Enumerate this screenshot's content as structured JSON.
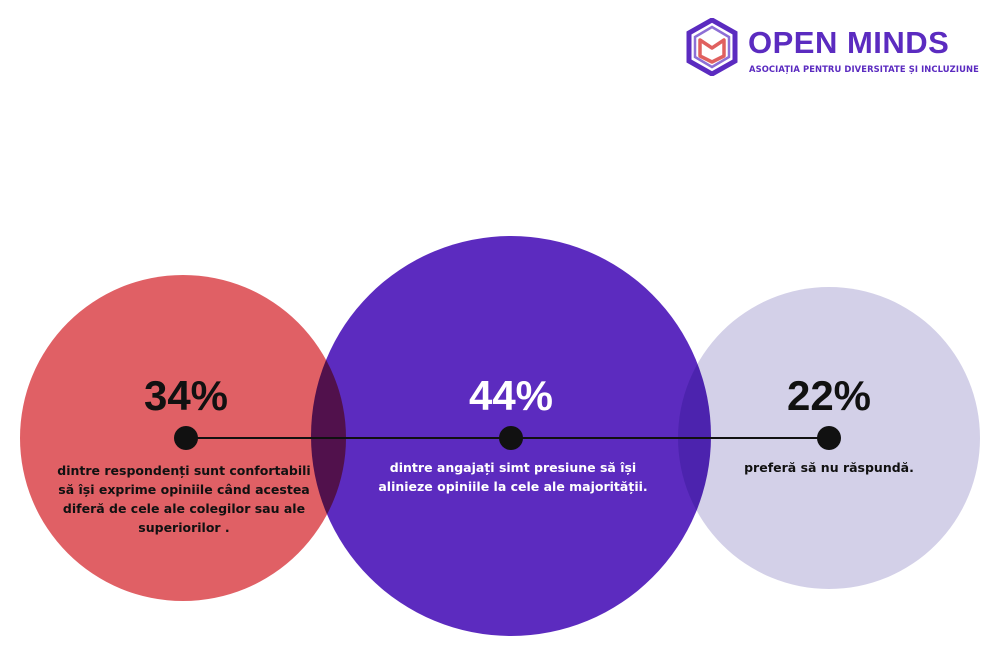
{
  "brand": {
    "name": "OPEN MINDS",
    "tagline": "ASOCIAȚIA PENTRU DIVERSITATE ȘI INCLUZIUNE",
    "color": "#5b2bc0",
    "icon": "open-book-logo-icon"
  },
  "chart_data": {
    "type": "bubble",
    "title": "",
    "connector": "timeline line with dot markers",
    "items": [
      {
        "value": 34,
        "label": "34%",
        "description": "dintre respondenți sunt confortabili să își exprime opiniile când acestea diferă de cele ale colegilor sau ale superiorilor .",
        "color": "#e06065",
        "text_color": "#111111"
      },
      {
        "value": 44,
        "label": "44%",
        "description": "dintre angajați simt presiune să își alinieze opiniile la cele ale majorității.",
        "color": "#5c2bbf",
        "text_color": "#ffffff"
      },
      {
        "value": 22,
        "label": "22%",
        "description": "preferă să nu răspundă.",
        "color": "#d3d0e8",
        "text_color": "#111111"
      }
    ]
  }
}
